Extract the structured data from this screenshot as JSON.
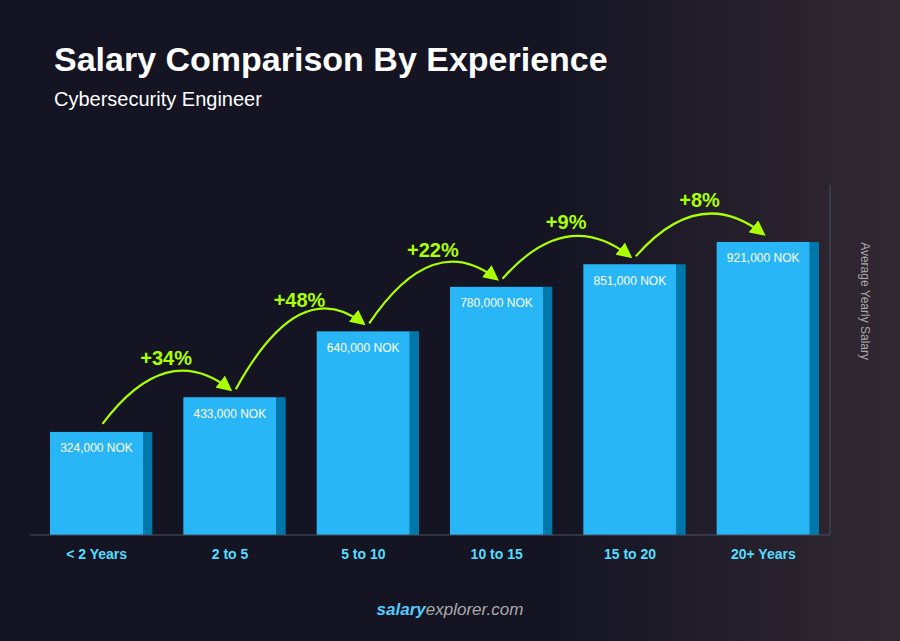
{
  "chart_data": {
    "type": "bar",
    "title": "Salary Comparison By Experience",
    "subtitle": "Cybersecurity Engineer",
    "ylabel": "Average Yearly Salary",
    "categories": [
      "< 2 Years",
      "2 to 5",
      "5 to 10",
      "10 to 15",
      "15 to 20",
      "20+ Years"
    ],
    "values": [
      324000,
      433000,
      640000,
      780000,
      851000,
      921000
    ],
    "value_labels": [
      "324,000 NOK",
      "433,000 NOK",
      "640,000 NOK",
      "780,000 NOK",
      "851,000 NOK",
      "921,000 NOK"
    ],
    "data_labels": true,
    "annotations": [
      "+34%",
      "+48%",
      "+22%",
      "+9%",
      "+8%"
    ],
    "watermark": [
      "salary",
      "explorer.com"
    ],
    "color": "#29B6F6",
    "ylim": [
      0,
      1100000
    ],
    "grid": false,
    "tick_labels": "x"
  }
}
